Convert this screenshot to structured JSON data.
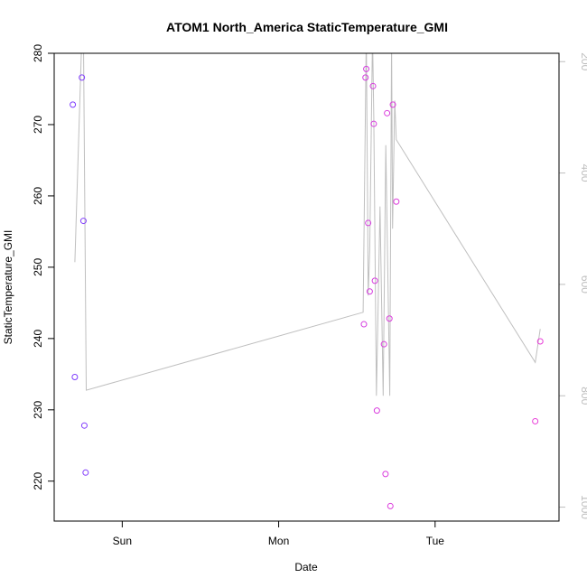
{
  "chart_data": {
    "type": "scatter",
    "title": "ATOM1 North_America StaticTemperature_GMI",
    "xlabel": "Date",
    "ylabel": "StaticTemperature_GMI",
    "x_ticks": [
      {
        "label": "Sun",
        "value": 1.0
      },
      {
        "label": "Mon",
        "value": 2.0
      },
      {
        "label": "Tue",
        "value": 3.0
      }
    ],
    "xlim": [
      0.565,
      3.792
    ],
    "ylim": [
      214.4,
      280
    ],
    "y_ticks": [
      220,
      230,
      240,
      250,
      260,
      270,
      280
    ],
    "y2_ticks": [
      200,
      400,
      600,
      800,
      1000
    ],
    "y2lim": [
      185,
      1025
    ],
    "y2_reversed": true,
    "grid": false,
    "legend": "none",
    "colors": {
      "line": "#bfbfbf",
      "points_early": "#7a3cff",
      "points_late": "#e040e0"
    },
    "series": [
      {
        "type": "points",
        "x": [
          0.684,
          0.697,
          0.742,
          0.752,
          0.758,
          0.766,
          2.545,
          2.555,
          2.56,
          2.572,
          2.582,
          2.603,
          2.608,
          2.615,
          2.628,
          2.673,
          2.683,
          2.693,
          2.708,
          2.714,
          2.73,
          2.752,
          3.64,
          3.672
        ],
        "y": [
          272.8,
          234.6,
          276.6,
          256.5,
          227.8,
          221.2,
          242.0,
          276.6,
          277.8,
          256.2,
          246.6,
          275.4,
          270.1,
          248.1,
          229.9,
          239.2,
          221.0,
          271.6,
          242.8,
          216.5,
          272.8,
          259.2,
          228.4,
          239.6
        ]
      },
      {
        "type": "line",
        "axis": "right",
        "x": [
          0.697,
          0.742,
          0.752,
          0.77,
          2.54,
          2.56,
          2.568,
          2.572,
          2.582,
          2.6,
          2.608,
          2.625,
          2.648,
          2.668,
          2.685,
          2.71,
          2.722,
          2.728,
          2.742,
          2.752,
          3.64,
          3.672
        ],
        "y": [
          560,
          150,
          150,
          790,
          650,
          150,
          450,
          620,
          540,
          150,
          300,
          800,
          460,
          800,
          350,
          800,
          160,
          500,
          270,
          340,
          740,
          680
        ]
      }
    ]
  }
}
